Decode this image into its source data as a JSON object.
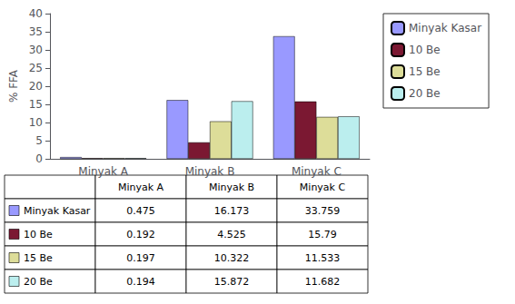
{
  "chart_data": {
    "type": "bar",
    "categories": [
      "Minyak A",
      "Minyak B",
      "Minyak C"
    ],
    "series": [
      {
        "name": "Minyak Kasar",
        "color": "#9999ff",
        "values": [
          0.475,
          16.173,
          33.759
        ]
      },
      {
        "name": "10 Be",
        "color": "#7b1832",
        "values": [
          0.192,
          4.525,
          15.79
        ]
      },
      {
        "name": "15 Be",
        "color": "#dddd99",
        "values": [
          0.197,
          10.322,
          11.533
        ]
      },
      {
        "name": "20 Be",
        "color": "#bbeeee",
        "values": [
          0.194,
          15.872,
          11.682
        ]
      }
    ],
    "ylabel": "% FFA",
    "ylim": [
      0,
      40
    ],
    "yticks": [
      0,
      5,
      10,
      15,
      20,
      25,
      30,
      35,
      40
    ],
    "grid": false,
    "legend": "right"
  }
}
